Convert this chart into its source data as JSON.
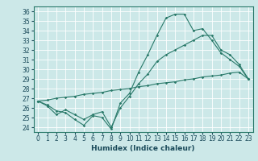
{
  "xlabel": "Humidex (Indice chaleur)",
  "background_color": "#cce8e8",
  "line_color": "#2a7a6a",
  "xlim": [
    -0.5,
    23.5
  ],
  "ylim": [
    23.5,
    36.5
  ],
  "xticks": [
    0,
    1,
    2,
    3,
    4,
    5,
    6,
    7,
    8,
    9,
    10,
    11,
    12,
    13,
    14,
    15,
    16,
    17,
    18,
    19,
    20,
    21,
    22,
    23
  ],
  "yticks": [
    24,
    25,
    26,
    27,
    28,
    29,
    30,
    31,
    32,
    33,
    34,
    35,
    36
  ],
  "line1_x": [
    0,
    1,
    2,
    3,
    4,
    5,
    6,
    7,
    8,
    9,
    10,
    11,
    12,
    13,
    14,
    15,
    16,
    17,
    18,
    19,
    20,
    21,
    22,
    23
  ],
  "line1_y": [
    26.7,
    26.3,
    25.7,
    25.5,
    24.8,
    24.2,
    25.2,
    25.0,
    23.8,
    26.5,
    27.5,
    29.7,
    31.5,
    33.5,
    35.3,
    35.7,
    35.7,
    34.0,
    34.2,
    33.0,
    31.7,
    31.0,
    30.3,
    29.0
  ],
  "line2_x": [
    0,
    1,
    2,
    3,
    4,
    5,
    6,
    7,
    8,
    9,
    10,
    11,
    12,
    13,
    14,
    15,
    16,
    17,
    18,
    19,
    20,
    21,
    22,
    23
  ],
  "line2_y": [
    26.7,
    26.8,
    27.0,
    27.1,
    27.2,
    27.4,
    27.5,
    27.6,
    27.8,
    27.9,
    28.0,
    28.2,
    28.3,
    28.5,
    28.6,
    28.7,
    28.9,
    29.0,
    29.2,
    29.3,
    29.4,
    29.6,
    29.7,
    29.0
  ],
  "line3_x": [
    0,
    1,
    2,
    3,
    4,
    5,
    6,
    7,
    8,
    9,
    10,
    11,
    12,
    13,
    14,
    15,
    16,
    17,
    18,
    19,
    20,
    21,
    22,
    23
  ],
  "line3_y": [
    26.7,
    26.2,
    25.3,
    25.8,
    25.3,
    24.8,
    25.3,
    25.6,
    24.0,
    26.0,
    27.2,
    28.5,
    29.5,
    30.8,
    31.5,
    32.0,
    32.5,
    33.0,
    33.5,
    33.5,
    32.0,
    31.5,
    30.5,
    29.0
  ],
  "xlabel_fontsize": 6.5,
  "tick_fontsize": 5.5
}
